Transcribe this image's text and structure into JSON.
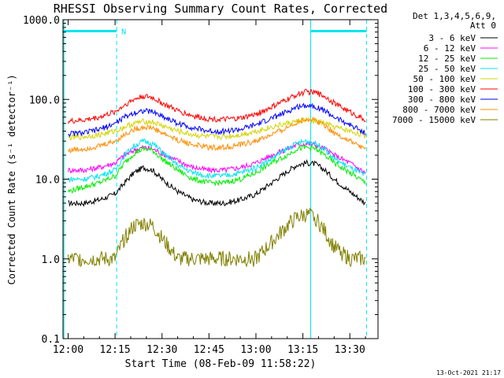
{
  "chart_data": {
    "type": "line",
    "title": "RHESSI Observing Summary Count Rates, Corrected",
    "xlabel": "Start Time (08-Feb-09 11:58:22)",
    "ylabel": "Corrected Count Rate (s⁻¹ detector⁻¹)",
    "y_scale": "log",
    "ylim": [
      0.1,
      1000.0
    ],
    "xlim": [
      "11:58:22",
      "13:39:00"
    ],
    "x_ticks": [
      "12:00",
      "12:15",
      "12:30",
      "12:45",
      "13:00",
      "13:15",
      "13:30"
    ],
    "y_ticks": [
      "0.1",
      "1.0",
      "10.0",
      "100.0",
      "1000.0"
    ],
    "legend_header": "Det 1,3,4,5,6,9,",
    "legend_subheader": "Att 0",
    "legend_position": "right",
    "footer_date": "13-Oct-2021 21:17",
    "annotations": [
      {
        "text": "N",
        "x": "12:16"
      }
    ],
    "markers": {
      "bar_color": "#00e5ee",
      "bar_level": 720,
      "bar_segments": [
        [
          "11:58:22",
          "12:15:30"
        ],
        [
          "13:17:30",
          "13:35:20"
        ]
      ],
      "solid_lines": [
        "11:58:40",
        "13:17:30"
      ],
      "dashed_lines": [
        "12:15:30",
        "13:35:20"
      ]
    },
    "x_data": [
      "12:00",
      "12:05",
      "12:10",
      "12:15",
      "12:18",
      "12:21",
      "12:24",
      "12:27",
      "12:30",
      "12:35",
      "12:40",
      "12:45",
      "12:50",
      "12:55",
      "13:00",
      "13:05",
      "13:10",
      "13:13",
      "13:16",
      "13:19",
      "13:22",
      "13:25",
      "13:30",
      "13:35"
    ],
    "series": [
      {
        "name": "3 - 6 keV",
        "color": "#000000",
        "values": [
          5,
          5,
          5.5,
          6.5,
          9,
          12,
          14,
          13,
          10,
          7,
          5.5,
          5,
          5,
          5.5,
          6.5,
          9,
          12.5,
          15,
          16,
          15.5,
          13,
          10,
          7,
          5
        ]
      },
      {
        "name": "6 - 12 keV",
        "color": "#ff00ff",
        "values": [
          13,
          13,
          14,
          16,
          20,
          23,
          25,
          24,
          21,
          17,
          14,
          13,
          13,
          14,
          16,
          20,
          24,
          27,
          28,
          27,
          24,
          20,
          16,
          12
        ]
      },
      {
        "name": "12 - 25 keV",
        "color": "#00ee00",
        "values": [
          7,
          8,
          9,
          11,
          16,
          21,
          24,
          23,
          18,
          13,
          10,
          9,
          9,
          10,
          12,
          16,
          20,
          24,
          25,
          24,
          20,
          16,
          12,
          9
        ]
      },
      {
        "name": "25 - 50 keV",
        "color": "#00e5ee",
        "values": [
          10,
          10,
          11,
          13,
          20,
          26,
          30,
          28,
          22,
          15,
          12,
          11,
          11,
          12,
          14,
          18,
          24,
          28,
          30,
          28,
          24,
          18,
          14,
          11
        ]
      },
      {
        "name": "50 - 100 keV",
        "color": "#d4d400",
        "values": [
          33,
          34,
          36,
          40,
          45,
          50,
          53,
          52,
          47,
          40,
          36,
          34,
          34,
          36,
          40,
          45,
          50,
          53,
          55,
          53,
          50,
          45,
          40,
          35
        ]
      },
      {
        "name": "100 - 300 keV",
        "color": "#ff0000",
        "values": [
          53,
          55,
          60,
          70,
          85,
          100,
          110,
          105,
          90,
          72,
          62,
          57,
          56,
          58,
          65,
          80,
          100,
          115,
          125,
          122,
          110,
          90,
          70,
          55
        ]
      },
      {
        "name": "300 - 800 keV",
        "color": "#0000ff",
        "values": [
          37,
          38,
          42,
          50,
          60,
          68,
          72,
          70,
          62,
          50,
          44,
          40,
          40,
          42,
          48,
          58,
          70,
          80,
          85,
          82,
          72,
          60,
          48,
          38
        ]
      },
      {
        "name": "800 - 7000 keV",
        "color": "#ff8c00",
        "values": [
          23,
          24,
          26,
          30,
          36,
          42,
          45,
          44,
          38,
          31,
          27,
          25,
          25,
          27,
          30,
          36,
          44,
          52,
          57,
          55,
          48,
          38,
          30,
          24
        ]
      },
      {
        "name": "7000 - 15000 keV",
        "color": "#808000",
        "values": [
          1,
          1,
          1,
          1,
          1.8,
          2.6,
          2.8,
          2.6,
          1.8,
          1,
          1,
          1,
          1,
          1,
          1,
          1.6,
          2.6,
          3.3,
          3.6,
          3.3,
          2.2,
          1.4,
          1,
          1
        ]
      }
    ]
  }
}
